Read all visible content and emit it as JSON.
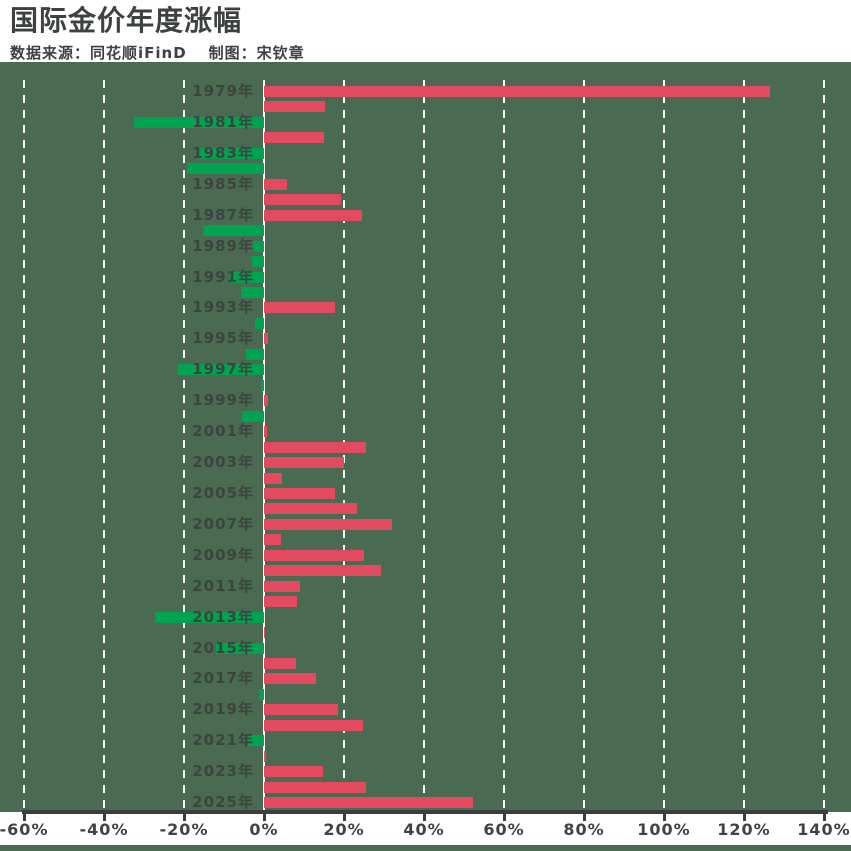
{
  "header": {
    "title": "国际金价年度涨幅",
    "source_label": "数据来源：同花顺iFinD",
    "author_label": "制图：宋钦章"
  },
  "chart_data": {
    "type": "bar",
    "orientation": "horizontal",
    "title": "国际金价年度涨幅",
    "unit": "%",
    "xlim": [
      -60,
      140
    ],
    "tick_values": [
      -60,
      -40,
      -20,
      0,
      20,
      40,
      60,
      80,
      100,
      120,
      140
    ],
    "tick_labels": [
      "-60%",
      "-40%",
      "-20%",
      "0%",
      "20%",
      "40%",
      "60%",
      "80%",
      "100%",
      "120%",
      "140%"
    ],
    "year_suffix": "年",
    "categories": [
      1979,
      1980,
      1981,
      1982,
      1983,
      1984,
      1985,
      1986,
      1987,
      1988,
      1989,
      1990,
      1991,
      1992,
      1993,
      1994,
      1995,
      1996,
      1997,
      1998,
      1999,
      2000,
      2001,
      2002,
      2003,
      2004,
      2005,
      2006,
      2007,
      2008,
      2009,
      2010,
      2011,
      2012,
      2013,
      2014,
      2015,
      2016,
      2017,
      2018,
      2019,
      2020,
      2021,
      2022,
      2023,
      2024,
      2025
    ],
    "values": [
      126.5,
      15.2,
      -32.6,
      14.9,
      -16.3,
      -19.2,
      5.8,
      19.2,
      24.5,
      -15.3,
      -2.8,
      -3.1,
      -8.5,
      -5.7,
      17.7,
      -2.2,
      1.0,
      -4.6,
      -21.4,
      -0.8,
      0.9,
      -5.4,
      0.7,
      25.6,
      19.9,
      4.6,
      17.8,
      23.2,
      31.9,
      4.3,
      25.0,
      29.2,
      8.9,
      8.3,
      -27.3,
      0.1,
      -12.1,
      8.1,
      12.9,
      -1.2,
      18.5,
      24.7,
      -4.0,
      0.4,
      14.7,
      25.5,
      52.3
    ],
    "labeled_years": [
      "1979年",
      "1981年",
      "1983年",
      "1985年",
      "1987年",
      "1989年",
      "1991年",
      "1993年",
      "1995年",
      "1997年",
      "1999年",
      "2001年",
      "2003年",
      "2005年",
      "2007年",
      "2009年",
      "2011年",
      "2013年",
      "2015年",
      "2017年",
      "2019年",
      "2021年",
      "2023年",
      "2025年"
    ],
    "positive_color": "#e24a5f",
    "negative_color": "#00a350",
    "panel_background": "#4a6b51",
    "grid": "dashed-white-vertical",
    "legend": "none"
  }
}
